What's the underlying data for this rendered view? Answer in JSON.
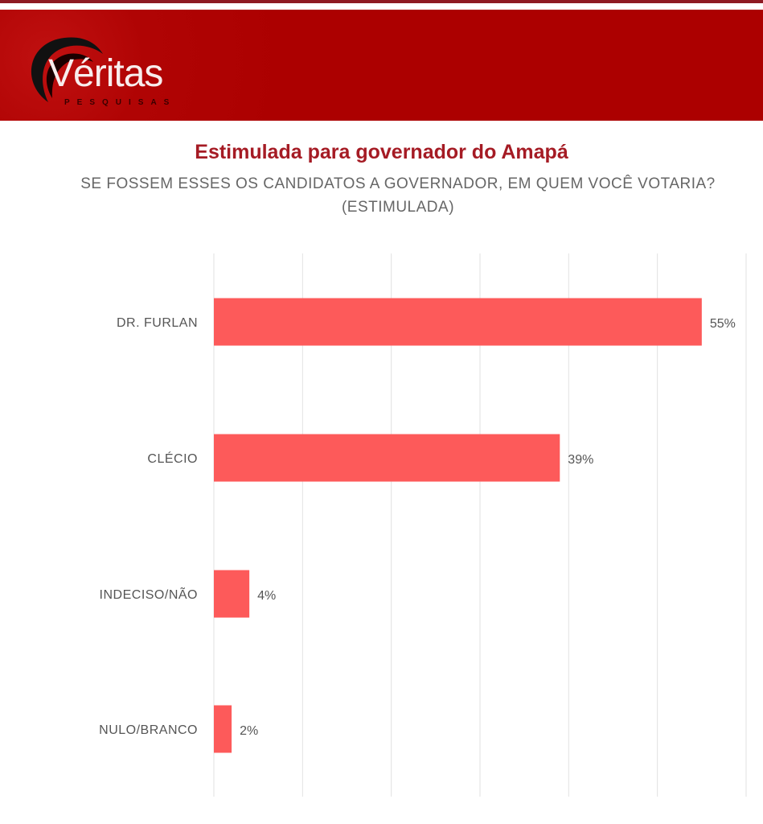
{
  "brand": {
    "name": "Véritas",
    "sub": "PESQUISAS",
    "header_color": "#b00000",
    "bar_color": "#fd5a5a"
  },
  "chart_data": {
    "type": "bar",
    "orientation": "horizontal",
    "title": "Estimulada para governador do Amapá",
    "subtitle": "SE FOSSEM ESSES OS CANDIDATOS A GOVERNADOR, EM QUEM VOCÊ VOTARIA? (ESTIMULADA)",
    "categories": [
      "DR. FURLAN",
      "CLÉCIO",
      "INDECISO/NÃO",
      "NULO/BRANCO"
    ],
    "values": [
      55,
      39,
      4,
      2
    ],
    "labels": [
      "55%",
      "39%",
      "4%",
      "2%"
    ],
    "xlim": [
      0,
      60
    ],
    "grid_step": 10,
    "grid": true,
    "xlabel": "",
    "ylabel": ""
  }
}
